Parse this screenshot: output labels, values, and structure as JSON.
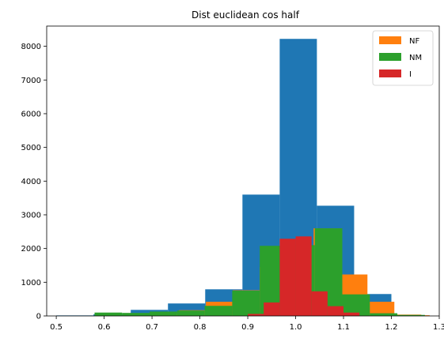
{
  "chart_data": {
    "type": "histogram",
    "title": "Dist euclidean cos half",
    "xlabel": "",
    "ylabel": "",
    "xlim": [
      0.48,
      1.3
    ],
    "ylim": [
      0,
      8600
    ],
    "xticks": [
      "0.5",
      "0.6",
      "0.7",
      "0.8",
      "0.9",
      "1.0",
      "1.1",
      "1.2",
      "1.3"
    ],
    "xtick_values": [
      0.5,
      0.6,
      0.7,
      0.8,
      0.9,
      1.0,
      1.1,
      1.2,
      1.3
    ],
    "yticks": [
      "0",
      "1000",
      "2000",
      "3000",
      "4000",
      "5000",
      "6000",
      "7000",
      "8000"
    ],
    "ytick_values": [
      0,
      1000,
      2000,
      3000,
      4000,
      5000,
      6000,
      7000,
      8000
    ],
    "grid": false,
    "legend_position": "top-right",
    "legend": [
      {
        "label": "NF",
        "color": "#ff7f0e"
      },
      {
        "label": "NM",
        "color": "#2ca02c"
      },
      {
        "label": "I",
        "color": "#d62728"
      }
    ],
    "series": [
      {
        "color": "#1f77b4",
        "bins": [
          {
            "x0": 0.5,
            "x1": 0.5778,
            "value": 15
          },
          {
            "x0": 0.5778,
            "x1": 0.6556,
            "value": 50
          },
          {
            "x0": 0.6556,
            "x1": 0.7333,
            "value": 180
          },
          {
            "x0": 0.7333,
            "x1": 0.8111,
            "value": 370
          },
          {
            "x0": 0.8111,
            "x1": 0.8889,
            "value": 790
          },
          {
            "x0": 0.8889,
            "x1": 0.9667,
            "value": 3600
          },
          {
            "x0": 0.9667,
            "x1": 1.0444,
            "value": 8220
          },
          {
            "x0": 1.0444,
            "x1": 1.1222,
            "value": 3270
          },
          {
            "x0": 1.1222,
            "x1": 1.2,
            "value": 650
          }
        ]
      },
      {
        "name": "NF",
        "color": "#ff7f0e",
        "bins": [
          {
            "x0": 0.7,
            "x1": 0.7562,
            "value": 60
          },
          {
            "x0": 0.7562,
            "x1": 0.8125,
            "value": 170
          },
          {
            "x0": 0.8125,
            "x1": 0.8687,
            "value": 420
          },
          {
            "x0": 0.8687,
            "x1": 0.925,
            "value": 760
          },
          {
            "x0": 0.925,
            "x1": 0.9812,
            "value": 1450
          },
          {
            "x0": 0.9812,
            "x1": 1.0375,
            "value": 1300
          },
          {
            "x0": 1.0375,
            "x1": 1.0937,
            "value": 2600
          },
          {
            "x0": 1.0937,
            "x1": 1.15,
            "value": 1230
          },
          {
            "x0": 1.15,
            "x1": 1.2062,
            "value": 420
          },
          {
            "x0": 1.2062,
            "x1": 1.2625,
            "value": 40
          },
          {
            "x0": 1.2625,
            "x1": 1.28,
            "value": 20
          }
        ]
      },
      {
        "name": "NM",
        "color": "#2ca02c",
        "bins": [
          {
            "x0": 0.58,
            "x1": 0.6375,
            "value": 100
          },
          {
            "x0": 0.6375,
            "x1": 0.695,
            "value": 90
          },
          {
            "x0": 0.695,
            "x1": 0.7525,
            "value": 130
          },
          {
            "x0": 0.7525,
            "x1": 0.81,
            "value": 160
          },
          {
            "x0": 0.81,
            "x1": 0.8675,
            "value": 300
          },
          {
            "x0": 0.8675,
            "x1": 0.925,
            "value": 750
          },
          {
            "x0": 0.925,
            "x1": 0.9825,
            "value": 2080
          },
          {
            "x0": 0.9825,
            "x1": 1.04,
            "value": 2100
          },
          {
            "x0": 1.04,
            "x1": 1.0975,
            "value": 2600
          },
          {
            "x0": 1.0975,
            "x1": 1.155,
            "value": 640
          },
          {
            "x0": 1.155,
            "x1": 1.2125,
            "value": 80
          },
          {
            "x0": 1.2125,
            "x1": 1.27,
            "value": 30
          }
        ]
      },
      {
        "name": "I",
        "color": "#d62728",
        "bins": [
          {
            "x0": 0.9,
            "x1": 0.9333,
            "value": 60
          },
          {
            "x0": 0.9333,
            "x1": 0.9667,
            "value": 400
          },
          {
            "x0": 0.9667,
            "x1": 1.0,
            "value": 2290
          },
          {
            "x0": 1.0,
            "x1": 1.0333,
            "value": 2360
          },
          {
            "x0": 1.0333,
            "x1": 1.0667,
            "value": 730
          },
          {
            "x0": 1.0667,
            "x1": 1.1,
            "value": 290
          },
          {
            "x0": 1.1,
            "x1": 1.1333,
            "value": 100
          }
        ]
      }
    ]
  }
}
